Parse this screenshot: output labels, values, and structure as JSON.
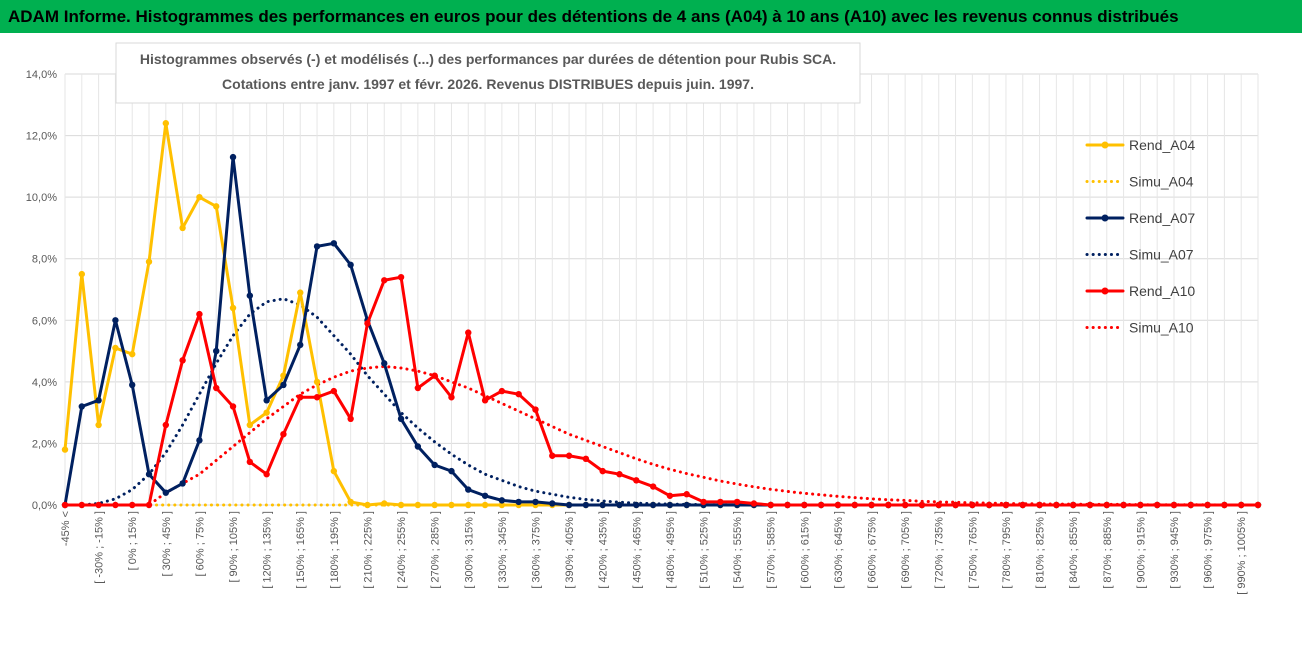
{
  "banner": {
    "title": "ADAM Informe. Histogrammes des performances en euros pour des détentions de 4 ans (A04) à 10 ans (A10) avec les revenus connus distribués",
    "background": "#00b050"
  },
  "chart_data": {
    "type": "line",
    "title": "Histogrammes observés (-) et modélisés (...) des performances par durées de détention pour Rubis SCA.",
    "subtitle": "Cotations entre janv. 1997 et févr. 2026. Revenus DISTRIBUES depuis juin. 1997.",
    "y_ticks": [
      "0,0%",
      "2,0%",
      "4,0%",
      "6,0%",
      "8,0%",
      "10,0%",
      "12,0%",
      "14,0%"
    ],
    "ylim": [
      0,
      14
    ],
    "grid": true,
    "legend_position": "right",
    "categories": [
      "-45% <",
      "[ -45% ; -30% ]",
      "[ -30% ; -15% ]",
      "[ -15% ; 0% ]",
      "[ 0% ; 15% ]",
      "[ 15% ; 30% ]",
      "[ 30% ; 45% ]",
      "[ 45% ; 60% ]",
      "[ 60% ; 75% ]",
      "[ 75% ; 90% ]",
      "[ 90% ; 105% ]",
      "[ 105% ; 120% ]",
      "[ 120% ; 135% ]",
      "[ 135% ; 150% ]",
      "[ 150% ; 165% ]",
      "[ 165% ; 180% ]",
      "[ 180% ; 195% ]",
      "[ 195% ; 210% ]",
      "[ 210% ; 225% ]",
      "[ 225% ; 240% ]",
      "[ 240% ; 255% ]",
      "[ 255% ; 270% ]",
      "[ 270% ; 285% ]",
      "[ 285% ; 300% ]",
      "[ 300% ; 315% ]",
      "[ 315% ; 330% ]",
      "[ 330% ; 345% ]",
      "[ 345% ; 360% ]",
      "[ 360% ; 375% ]",
      "[ 375% ; 390% ]",
      "[ 390% ; 405% ]",
      "[ 405% ; 420% ]",
      "[ 420% ; 435% ]",
      "[ 435% ; 450% ]",
      "[ 450% ; 465% ]",
      "[ 465% ; 480% ]",
      "[ 480% ; 495% ]",
      "[ 495% ; 510% ]",
      "[ 510% ; 525% ]",
      "[ 525% ; 540% ]",
      "[ 540% ; 555% ]",
      "[ 555% ; 570% ]",
      "[ 570% ; 585% ]",
      "[ 585% ; 600% ]",
      "[ 600% ; 615% ]",
      "[ 615% ; 630% ]",
      "[ 630% ; 645% ]",
      "[ 645% ; 660% ]",
      "[ 660% ; 675% ]",
      "[ 675% ; 690% ]",
      "[ 690% ; 705% ]",
      "[ 705% ; 720% ]",
      "[ 720% ; 735% ]",
      "[ 735% ; 750% ]",
      "[ 750% ; 765% ]",
      "[ 765% ; 780% ]",
      "[ 780% ; 795% ]",
      "[ 795% ; 810% ]",
      "[ 810% ; 825% ]",
      "[ 825% ; 840% ]",
      "[ 840% ; 855% ]",
      "[ 855% ; 870% ]",
      "[ 870% ; 885% ]",
      "[ 885% ; 900% ]",
      "[ 900% ; 915% ]",
      "[ 915% ; 930% ]",
      "[ 930% ; 945% ]",
      "[ 945% ; 960% ]",
      "[ 960% ; 975% ]",
      "[ 975% ; 990% ]",
      "[ 990% ; 1005% ]",
      "[ 1005% ; 1020% ]"
    ],
    "series": [
      {
        "name": "Rend_A04",
        "color": "#ffc000",
        "style": "solid",
        "marker": true,
        "values": [
          1.8,
          7.5,
          2.6,
          5.1,
          4.9,
          7.9,
          12.4,
          9.0,
          10.0,
          9.7,
          6.4,
          2.6,
          3.0,
          4.2,
          6.9,
          4.0,
          1.1,
          0.1,
          0.0,
          0.05,
          0.0,
          0.0,
          0.0,
          0.0,
          0.0,
          0.0,
          0.0,
          0.0,
          0.0,
          0.0,
          0.0,
          0.0,
          0.0,
          0.0,
          0.0,
          0.0,
          0.0,
          0.0,
          0.0,
          0.0,
          0.0,
          0.0,
          0.0,
          0.0,
          0.0,
          0.0,
          0.0,
          0.0,
          0.0,
          0.0,
          0.0,
          0.0,
          0.0,
          0.0,
          0.0,
          0.0,
          0.0,
          0.0,
          0.0,
          0.0,
          0.0,
          0.0,
          0.0,
          0.0,
          0.0,
          0.0,
          0.0,
          0.0,
          0.0,
          0.0,
          0.0,
          0.0
        ]
      },
      {
        "name": "Simu_A04",
        "color": "#ffc000",
        "style": "dotted",
        "marker": false,
        "values": [
          0.0,
          0.0,
          0.0,
          0.0,
          0.0,
          0.0,
          0.0,
          0.0,
          0.0,
          0.0,
          0.0,
          0.0,
          0.0,
          0.0,
          0.0,
          0.0,
          0.0,
          0.0,
          0.0,
          0.0,
          0.0,
          0.0,
          0.0,
          0.0,
          0.0,
          0.0,
          0.0,
          0.0,
          0.0,
          0.0,
          0.0,
          0.0,
          0.0,
          0.0,
          0.0,
          0.0,
          0.0,
          0.0,
          0.0,
          0.0,
          0.0,
          0.0,
          0.0,
          0.0,
          0.0,
          0.0,
          0.0,
          0.0,
          0.0,
          0.0,
          0.0,
          0.0,
          0.0,
          0.0,
          0.0,
          0.0,
          0.0,
          0.0,
          0.0,
          0.0,
          0.0,
          0.0,
          0.0,
          0.0,
          0.0,
          0.0,
          0.0,
          0.0,
          0.0,
          0.0,
          0.0,
          0.0
        ]
      },
      {
        "name": "Rend_A07",
        "color": "#002060",
        "style": "solid",
        "marker": true,
        "values": [
          0.0,
          3.2,
          3.4,
          6.0,
          3.9,
          1.0,
          0.4,
          0.7,
          2.1,
          5.0,
          11.3,
          6.8,
          3.4,
          3.9,
          5.2,
          8.4,
          8.5,
          7.8,
          6.0,
          4.6,
          2.8,
          1.9,
          1.3,
          1.1,
          0.5,
          0.3,
          0.15,
          0.1,
          0.1,
          0.05,
          0.0,
          0.0,
          0.0,
          0.0,
          0.0,
          0.0,
          0.0,
          0.0,
          0.0,
          0.0,
          0.0,
          0.0,
          0.0,
          0.0,
          0.0,
          0.0,
          0.0,
          0.0,
          0.0,
          0.0,
          0.0,
          0.0,
          0.0,
          0.0,
          0.0,
          0.0,
          0.0,
          0.0,
          0.0,
          0.0,
          0.0,
          0.0,
          0.0,
          0.0,
          0.0,
          0.0,
          0.0,
          0.0,
          0.0,
          0.0,
          0.0,
          0.0
        ]
      },
      {
        "name": "Simu_A07",
        "color": "#002060",
        "style": "dotted",
        "marker": false,
        "values": [
          0.0,
          0.0,
          0.05,
          0.2,
          0.5,
          1.0,
          1.7,
          2.6,
          3.6,
          4.6,
          5.5,
          6.2,
          6.6,
          6.7,
          6.5,
          6.1,
          5.5,
          4.9,
          4.2,
          3.6,
          3.0,
          2.5,
          2.05,
          1.65,
          1.3,
          1.0,
          0.8,
          0.6,
          0.45,
          0.35,
          0.25,
          0.18,
          0.13,
          0.09,
          0.06,
          0.04,
          0.03,
          0.02,
          0.01,
          0.01,
          0.0,
          0.0,
          0.0,
          0.0,
          0.0,
          0.0,
          0.0,
          0.0,
          0.0,
          0.0,
          0.0,
          0.0,
          0.0,
          0.0,
          0.0,
          0.0,
          0.0,
          0.0,
          0.0,
          0.0,
          0.0,
          0.0,
          0.0,
          0.0,
          0.0,
          0.0,
          0.0,
          0.0,
          0.0,
          0.0,
          0.0,
          0.0
        ]
      },
      {
        "name": "Rend_A10",
        "color": "#ff0000",
        "style": "solid",
        "marker": true,
        "values": [
          0.0,
          0.0,
          0.0,
          0.0,
          0.0,
          0.0,
          2.6,
          4.7,
          6.2,
          3.8,
          3.2,
          1.4,
          1.0,
          2.3,
          3.5,
          3.5,
          3.7,
          2.8,
          5.9,
          7.3,
          7.4,
          3.8,
          4.2,
          3.5,
          5.6,
          3.4,
          3.7,
          3.6,
          3.1,
          1.6,
          1.6,
          1.5,
          1.1,
          1.0,
          0.8,
          0.6,
          0.3,
          0.35,
          0.1,
          0.1,
          0.1,
          0.05,
          0.0,
          0.0,
          0.0,
          0.0,
          0.0,
          0.0,
          0.0,
          0.0,
          0.0,
          0.0,
          0.0,
          0.0,
          0.0,
          0.0,
          0.0,
          0.0,
          0.0,
          0.0,
          0.0,
          0.0,
          0.0,
          0.0,
          0.0,
          0.0,
          0.0,
          0.0,
          0.0,
          0.0,
          0.0,
          0.0
        ]
      },
      {
        "name": "Simu_A10",
        "color": "#ff0000",
        "style": "dotted",
        "marker": false,
        "values": [
          0.0,
          0.0,
          0.0,
          0.0,
          0.0,
          0.0,
          0.4,
          0.7,
          1.0,
          1.45,
          1.9,
          2.35,
          2.8,
          3.2,
          3.6,
          3.9,
          4.15,
          4.35,
          4.45,
          4.5,
          4.45,
          4.35,
          4.2,
          4.0,
          3.8,
          3.55,
          3.3,
          3.05,
          2.8,
          2.55,
          2.3,
          2.1,
          1.9,
          1.7,
          1.5,
          1.32,
          1.16,
          1.02,
          0.9,
          0.78,
          0.68,
          0.59,
          0.51,
          0.44,
          0.38,
          0.33,
          0.28,
          0.24,
          0.2,
          0.17,
          0.15,
          0.12,
          0.1,
          0.09,
          0.07,
          0.06,
          0.05,
          0.04,
          0.04,
          0.03,
          0.03,
          0.02,
          0.02,
          0.02,
          0.01,
          0.01,
          0.01,
          0.01,
          0.01,
          0.0,
          0.0,
          0.0
        ]
      }
    ]
  }
}
